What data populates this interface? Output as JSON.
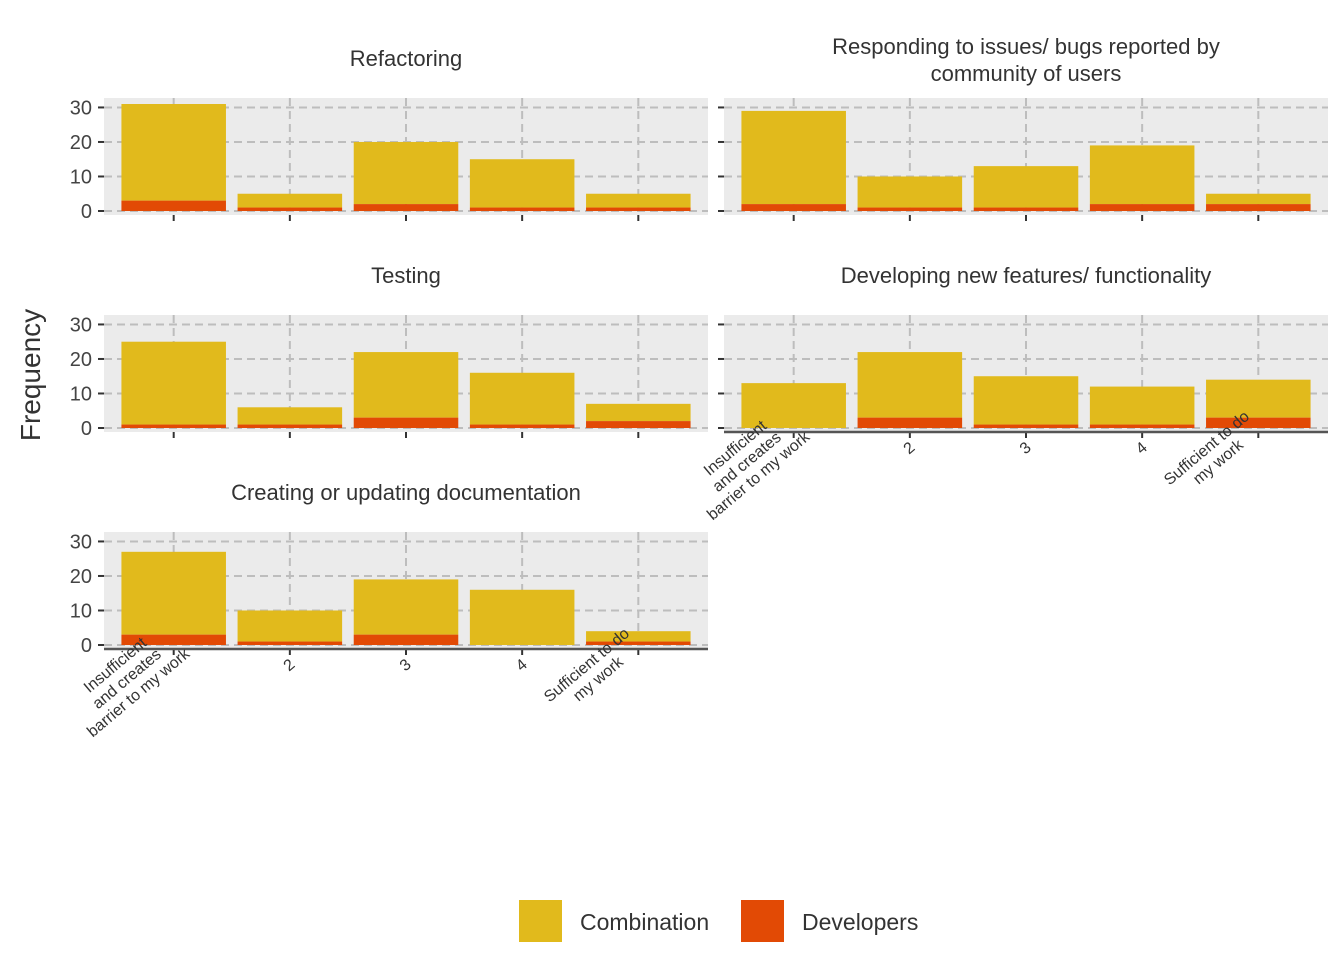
{
  "chart_data": {
    "type": "bar",
    "stacked": true,
    "ylabel": "Frequency",
    "xlabel": "",
    "ylim": [
      0,
      32
    ],
    "y_ticks": [
      0,
      10,
      20,
      30
    ],
    "grid": true,
    "legend_position": "bottom",
    "categories": [
      "Insufficient\nand creates\nbarrier to my work",
      "2",
      "3",
      "4",
      "Sufficient to do\nmy work"
    ],
    "series_names": [
      "Combination",
      "Developers"
    ],
    "colors": {
      "Combination": "#E1BA1C",
      "Developers": "#E24A05"
    },
    "panels": [
      {
        "title": "Refactoring",
        "series": [
          {
            "name": "Combination",
            "values": [
              28,
              4,
              18,
              14,
              4
            ]
          },
          {
            "name": "Developers",
            "values": [
              3,
              1,
              2,
              1,
              1
            ]
          }
        ]
      },
      {
        "title": "Responding to issues/ bugs reported by\ncommunity of users",
        "series": [
          {
            "name": "Combination",
            "values": [
              27,
              9,
              12,
              17,
              3
            ]
          },
          {
            "name": "Developers",
            "values": [
              2,
              1,
              1,
              2,
              2
            ]
          }
        ]
      },
      {
        "title": "Testing",
        "series": [
          {
            "name": "Combination",
            "values": [
              24,
              5,
              19,
              15,
              5
            ]
          },
          {
            "name": "Developers",
            "values": [
              1,
              1,
              3,
              1,
              2
            ]
          }
        ]
      },
      {
        "title": "Developing new features/ functionality",
        "series": [
          {
            "name": "Combination",
            "values": [
              13,
              19,
              14,
              11,
              11
            ]
          },
          {
            "name": "Developers",
            "values": [
              0,
              3,
              1,
              1,
              3
            ]
          }
        ]
      },
      {
        "title": "Creating or updating documentation",
        "series": [
          {
            "name": "Combination",
            "values": [
              24,
              9,
              16,
              16,
              3
            ]
          },
          {
            "name": "Developers",
            "values": [
              3,
              1,
              3,
              0,
              1
            ]
          }
        ]
      }
    ]
  }
}
